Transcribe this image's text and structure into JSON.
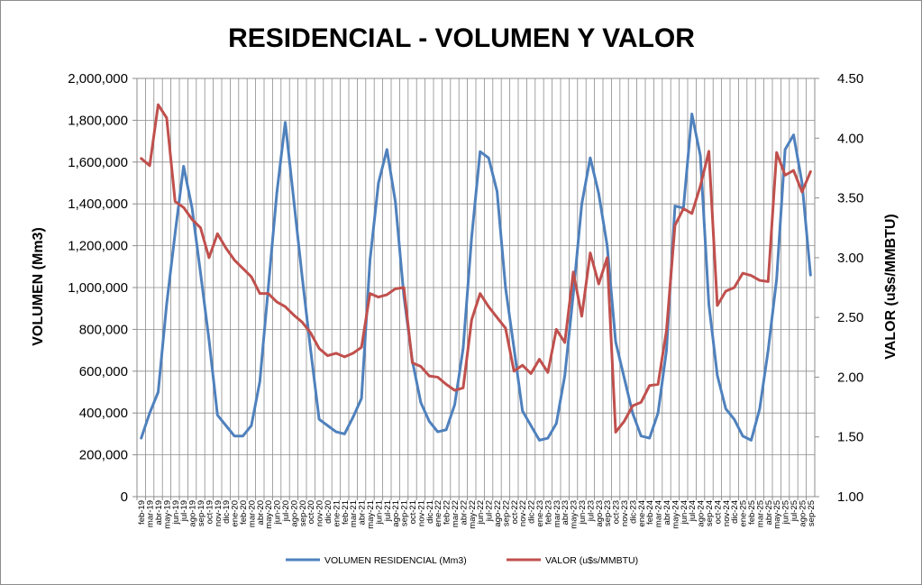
{
  "chart_data": {
    "type": "line",
    "title": "RESIDENCIAL - VOLUMEN Y VALOR",
    "ylabel": "VOLUMEN (Mm3)",
    "y2label": "VALOR (u$s/MMBTU)",
    "ylim": [
      0,
      2000000
    ],
    "y2lim": [
      1.0,
      4.5
    ],
    "yticks": [
      "0",
      "200,000",
      "400,000",
      "600,000",
      "800,000",
      "1,000,000",
      "1,200,000",
      "1,400,000",
      "1,600,000",
      "1,800,000",
      "2,000,000"
    ],
    "y2ticks": [
      "1.00",
      "1.50",
      "2.00",
      "2.50",
      "3.00",
      "3.50",
      "4.00",
      "4.50"
    ],
    "grid": true,
    "legend_position": "bottom",
    "x": [
      "feb-19",
      "mar-19",
      "abr-19",
      "may-19",
      "jun-19",
      "jul-19",
      "ago-19",
      "sep-19",
      "oct-19",
      "nov-19",
      "dic-19",
      "ene-20",
      "feb-20",
      "mar-20",
      "abr-20",
      "may-20",
      "jun-20",
      "jul-20",
      "ago-20",
      "sep-20",
      "oct-20",
      "nov-20",
      "dic-20",
      "ene-21",
      "feb-21",
      "mar-21",
      "abr-21",
      "may-21",
      "jun-21",
      "jul-21",
      "ago-21",
      "sep-21",
      "oct-21",
      "nov-21",
      "dic-21",
      "ene-22",
      "feb-22",
      "mar-22",
      "abr-22",
      "may-22",
      "jun-22",
      "jul-22",
      "ago-22",
      "sep-22",
      "oct-22",
      "nov-22",
      "dic-22",
      "ene-23",
      "feb-23",
      "mar-23",
      "abr-23",
      "may-23",
      "jun-23",
      "jul-23",
      "ago-23",
      "sep-23",
      "oct-23",
      "nov-23",
      "dic-23",
      "ene-24",
      "feb-24",
      "mar-24",
      "abr-24",
      "may-24",
      "jun-24",
      "jul-24",
      "ago-24",
      "sep-24",
      "oct-24",
      "nov-24",
      "dic-24",
      "ene-25",
      "feb-25",
      "mar-25",
      "abr-25",
      "may-25",
      "jun-25",
      "jul-25",
      "ago-25",
      "sep-25"
    ],
    "series": [
      {
        "name": "VOLUMEN RESIDENCIAL (Mm3)",
        "axis": "left",
        "color": "#4f81bd",
        "values": [
          280000,
          400000,
          500000,
          920000,
          1260000,
          1580000,
          1380000,
          1070000,
          750000,
          390000,
          340000,
          290000,
          290000,
          340000,
          550000,
          1000000,
          1450000,
          1790000,
          1420000,
          1050000,
          700000,
          370000,
          340000,
          310000,
          300000,
          380000,
          470000,
          1130000,
          1500000,
          1660000,
          1410000,
          960000,
          650000,
          450000,
          360000,
          310000,
          320000,
          440000,
          710000,
          1240000,
          1650000,
          1620000,
          1460000,
          1000000,
          710000,
          410000,
          340000,
          270000,
          280000,
          350000,
          580000,
          970000,
          1400000,
          1620000,
          1450000,
          1200000,
          740000,
          570000,
          400000,
          290000,
          280000,
          400000,
          700000,
          1390000,
          1380000,
          1830000,
          1630000,
          920000,
          580000,
          420000,
          370000,
          290000,
          270000,
          420000,
          700000,
          1040000,
          1660000,
          1730000,
          1500000,
          1060000
        ]
      },
      {
        "name": "VALOR (u$s/MMBTU)",
        "axis": "right",
        "color": "#c0504d",
        "values": [
          3.83,
          3.77,
          4.28,
          4.17,
          3.47,
          3.42,
          3.32,
          3.25,
          3.0,
          3.2,
          3.08,
          2.98,
          2.91,
          2.84,
          2.7,
          2.7,
          2.63,
          2.59,
          2.52,
          2.46,
          2.37,
          2.24,
          2.18,
          2.2,
          2.17,
          2.2,
          2.25,
          2.7,
          2.67,
          2.69,
          2.74,
          2.75,
          2.12,
          2.09,
          2.01,
          2.0,
          1.94,
          1.89,
          1.91,
          2.48,
          2.7,
          2.59,
          2.5,
          2.41,
          2.05,
          2.1,
          2.03,
          2.15,
          2.04,
          2.4,
          2.29,
          2.88,
          2.51,
          3.04,
          2.78,
          3.0,
          1.54,
          1.63,
          1.76,
          1.79,
          1.93,
          1.94,
          2.39,
          3.27,
          3.41,
          3.37,
          3.6,
          3.89,
          2.6,
          2.72,
          2.75,
          2.87,
          2.85,
          2.81,
          2.8,
          3.88,
          3.69,
          3.73,
          3.55,
          3.72
        ]
      }
    ]
  }
}
